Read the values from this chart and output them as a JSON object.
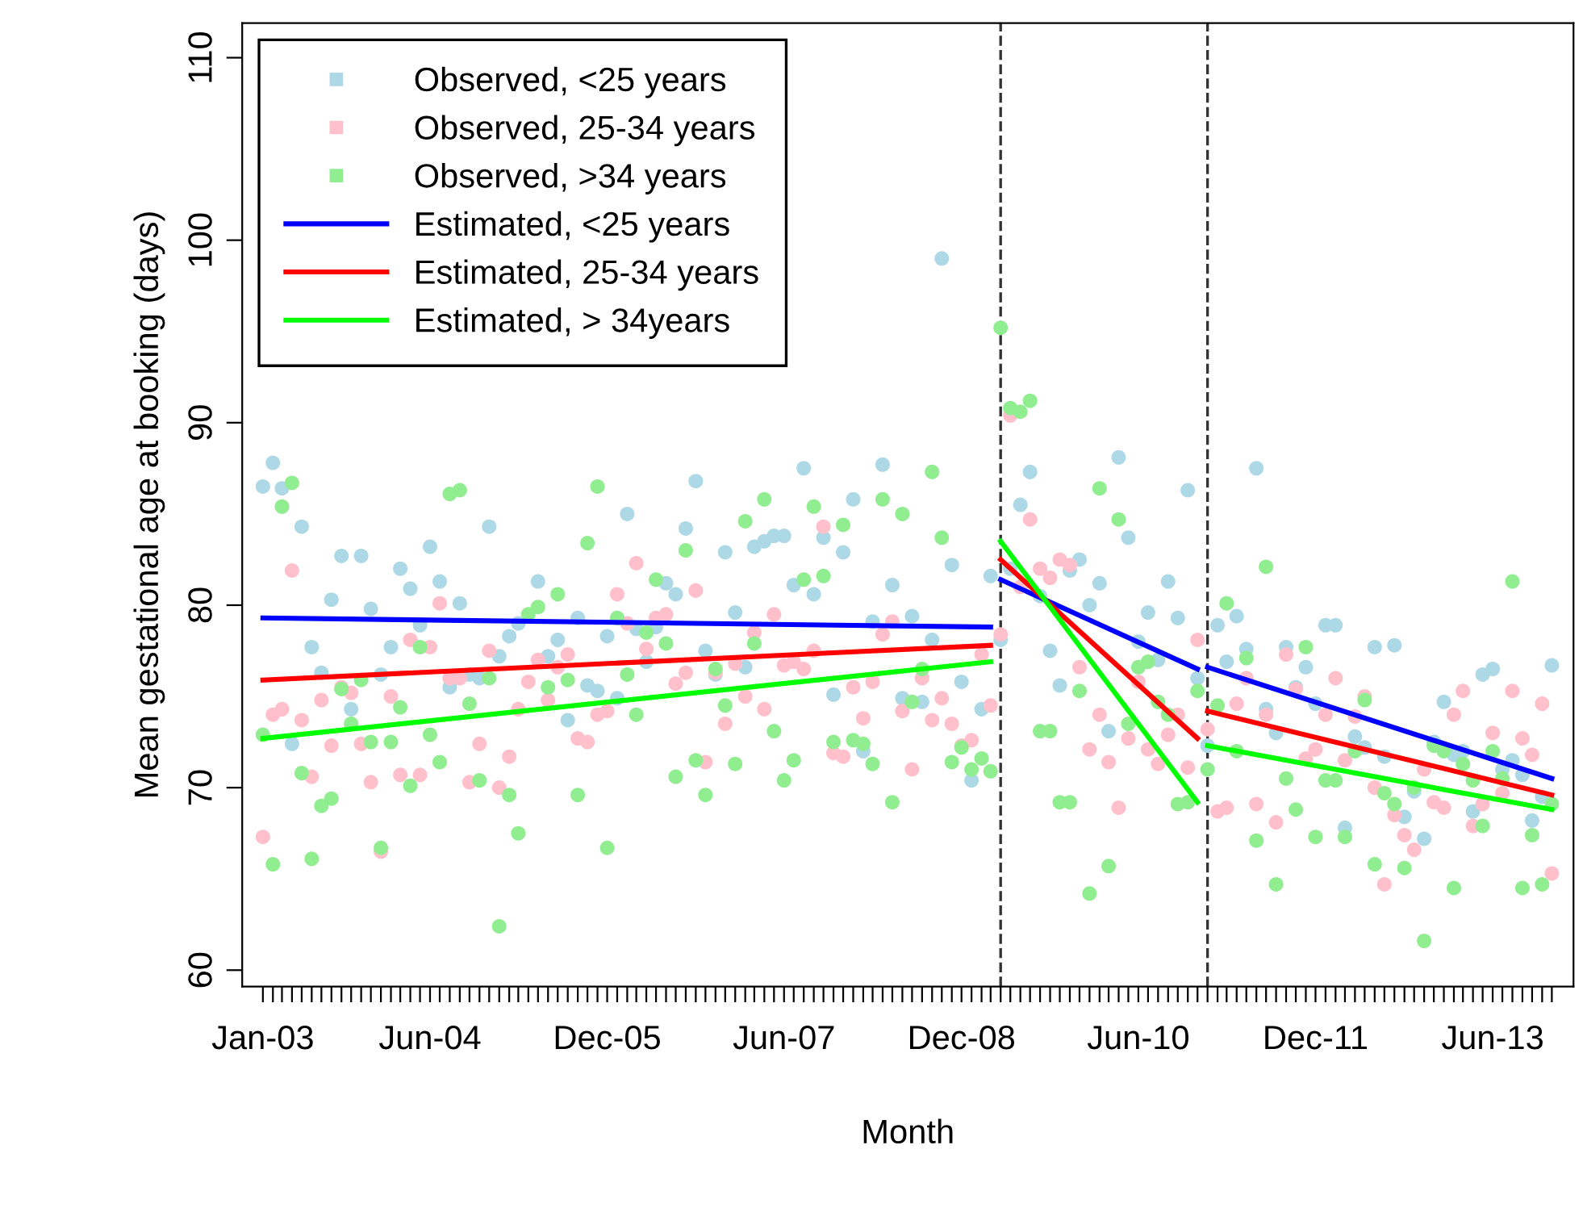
{
  "chart_data": {
    "type": "scatter",
    "xlabel": "Month",
    "ylabel": "Mean gestational age at booking (days)",
    "x": [
      "2003-01",
      "2003-02",
      "2003-03",
      "2003-04",
      "2003-05",
      "2003-06",
      "2003-07",
      "2003-08",
      "2003-09",
      "2003-10",
      "2003-11",
      "2003-12",
      "2004-01",
      "2004-02",
      "2004-03",
      "2004-04",
      "2004-05",
      "2004-06",
      "2004-07",
      "2004-08",
      "2004-09",
      "2004-10",
      "2004-11",
      "2004-12",
      "2005-01",
      "2005-02",
      "2005-03",
      "2005-04",
      "2005-05",
      "2005-06",
      "2005-07",
      "2005-08",
      "2005-09",
      "2005-10",
      "2005-11",
      "2005-12",
      "2006-01",
      "2006-02",
      "2006-03",
      "2006-04",
      "2006-05",
      "2006-06",
      "2006-07",
      "2006-08",
      "2006-09",
      "2006-10",
      "2006-11",
      "2006-12",
      "2007-01",
      "2007-02",
      "2007-03",
      "2007-04",
      "2007-05",
      "2007-06",
      "2007-07",
      "2007-08",
      "2007-09",
      "2007-10",
      "2007-11",
      "2007-12",
      "2008-01",
      "2008-02",
      "2008-03",
      "2008-04",
      "2008-05",
      "2008-06",
      "2008-07",
      "2008-08",
      "2008-09",
      "2008-10",
      "2008-11",
      "2008-12",
      "2009-01",
      "2009-02",
      "2009-03",
      "2009-04",
      "2009-05",
      "2009-06",
      "2009-07",
      "2009-08",
      "2009-09",
      "2009-10",
      "2009-11",
      "2009-12",
      "2010-01",
      "2010-02",
      "2010-03",
      "2010-04",
      "2010-05",
      "2010-06",
      "2010-07",
      "2010-08",
      "2010-09",
      "2010-10",
      "2010-11",
      "2010-12",
      "2011-01",
      "2011-02",
      "2011-03",
      "2011-04",
      "2011-05",
      "2011-06",
      "2011-07",
      "2011-08",
      "2011-09",
      "2011-10",
      "2011-11",
      "2011-12",
      "2012-01",
      "2012-02",
      "2012-03",
      "2012-04",
      "2012-05",
      "2012-06",
      "2012-07",
      "2012-08",
      "2012-09",
      "2012-10",
      "2012-11",
      "2012-12",
      "2013-01",
      "2013-02",
      "2013-03",
      "2013-04",
      "2013-05",
      "2013-06",
      "2013-07",
      "2013-08",
      "2013-09",
      "2013-10",
      "2013-11",
      "2013-12"
    ],
    "series": [
      {
        "name": "Observed, <25 years",
        "marker": "circle",
        "color": "#add8e6",
        "values": [
          86.5,
          87.8,
          86.4,
          72.4,
          84.3,
          77.7,
          76.3,
          80.3,
          82.7,
          74.3,
          82.7,
          79.8,
          76.2,
          77.7,
          82.0,
          80.9,
          78.9,
          83.2,
          81.3,
          75.5,
          80.1,
          76.2,
          76.0,
          84.3,
          77.2,
          78.3,
          79.0,
          null,
          81.3,
          77.2,
          78.1,
          73.7,
          79.3,
          75.6,
          75.3,
          78.3,
          74.9,
          85.0,
          78.7,
          76.9,
          78.8,
          81.2,
          80.6,
          84.2,
          86.8,
          77.5,
          76.2,
          82.9,
          79.6,
          76.6,
          83.2,
          83.5,
          83.8,
          83.8,
          81.1,
          87.5,
          80.6,
          83.7,
          75.1,
          82.9,
          85.8,
          72.0,
          79.1,
          87.7,
          81.1,
          74.9,
          79.4,
          74.7,
          78.1,
          99.0,
          82.2,
          75.8,
          70.4,
          74.3,
          81.6,
          78.1,
          82.0,
          85.5,
          87.3,
          80.5,
          77.5,
          75.6,
          81.9,
          82.5,
          80.0,
          81.2,
          73.1,
          88.1,
          83.7,
          78.0,
          79.6,
          77.0,
          81.3,
          79.3,
          86.3,
          76.0,
          72.3,
          78.9,
          76.9,
          79.4,
          77.6,
          87.5,
          74.3,
          73.0,
          77.7,
          75.5,
          76.6,
          74.6,
          78.9,
          78.9,
          67.8,
          72.8,
          72.2,
          77.7,
          71.7,
          77.8,
          68.4,
          69.8,
          67.2,
          72.5,
          74.7,
          71.8,
          72.0,
          68.7,
          76.2,
          76.5,
          71.0,
          71.5,
          70.7,
          68.2,
          69.5,
          76.7
        ]
      },
      {
        "name": "Observed, 25-34 years",
        "marker": "circle",
        "color": "#ffc0cb",
        "values": [
          67.3,
          74.0,
          74.3,
          81.9,
          73.7,
          70.6,
          74.8,
          72.3,
          75.5,
          75.2,
          72.4,
          70.3,
          66.5,
          75.0,
          70.7,
          78.1,
          70.7,
          77.7,
          80.1,
          76.0,
          76.0,
          70.3,
          72.4,
          77.5,
          70.0,
          71.7,
          74.3,
          75.8,
          77.0,
          74.8,
          76.6,
          77.3,
          72.7,
          72.5,
          74.0,
          74.2,
          80.6,
          79.0,
          82.3,
          77.6,
          79.3,
          79.5,
          75.7,
          76.3,
          80.8,
          71.4,
          76.3,
          73.5,
          76.8,
          75.0,
          78.5,
          74.3,
          79.5,
          76.7,
          76.9,
          76.5,
          77.5,
          84.3,
          71.9,
          71.7,
          75.5,
          73.8,
          75.8,
          78.4,
          79.1,
          74.2,
          71.0,
          76.0,
          73.7,
          74.9,
          73.5,
          72.3,
          72.6,
          77.3,
          74.5,
          78.4,
          90.4,
          81.0,
          84.7,
          82.0,
          81.5,
          82.5,
          82.2,
          76.6,
          72.1,
          74.0,
          71.4,
          68.9,
          72.7,
          75.8,
          72.1,
          71.3,
          72.9,
          74.0,
          71.1,
          78.1,
          73.2,
          68.7,
          68.9,
          74.6,
          76.0,
          69.1,
          74.0,
          68.1,
          77.3,
          75.4,
          71.6,
          72.1,
          74.0,
          76.0,
          71.5,
          73.9,
          75.0,
          70.0,
          64.7,
          68.5,
          67.4,
          66.6,
          71.0,
          69.2,
          68.9,
          74.0,
          75.3,
          67.9,
          69.1,
          73.0,
          69.7,
          75.3,
          72.7,
          71.8,
          74.6,
          65.3
        ]
      },
      {
        "name": "Observed, >34 years",
        "marker": "circle",
        "color": "#90ee90",
        "values": [
          72.9,
          65.8,
          85.4,
          86.7,
          70.8,
          66.1,
          69.0,
          69.4,
          75.4,
          73.5,
          75.9,
          72.5,
          66.7,
          72.5,
          74.4,
          70.1,
          77.7,
          72.9,
          71.4,
          86.1,
          86.3,
          74.6,
          70.4,
          76.0,
          62.4,
          69.6,
          67.5,
          79.5,
          79.9,
          75.5,
          80.6,
          75.9,
          69.6,
          83.4,
          86.5,
          66.7,
          79.3,
          76.2,
          74.0,
          78.5,
          81.4,
          77.9,
          70.6,
          83.0,
          71.5,
          69.6,
          76.5,
          74.5,
          71.3,
          84.6,
          77.9,
          85.8,
          73.1,
          70.4,
          71.5,
          81.4,
          85.4,
          81.6,
          72.5,
          84.4,
          72.6,
          72.4,
          71.3,
          85.8,
          69.2,
          85.0,
          74.7,
          76.5,
          87.3,
          83.7,
          71.4,
          72.2,
          71.0,
          71.6,
          70.9,
          95.2,
          90.8,
          90.6,
          91.2,
          73.1,
          73.1,
          69.2,
          69.2,
          75.3,
          64.2,
          86.4,
          65.7,
          84.7,
          73.5,
          76.6,
          76.9,
          74.7,
          74.0,
          69.1,
          69.2,
          75.3,
          71.0,
          74.5,
          80.1,
          72.0,
          77.1,
          67.1,
          82.1,
          64.7,
          70.5,
          68.8,
          77.7,
          67.3,
          70.4,
          70.4,
          67.3,
          72.0,
          74.8,
          65.8,
          69.7,
          69.1,
          65.6,
          70.0,
          61.6,
          72.3,
          72.0,
          64.5,
          71.3,
          70.4,
          67.9,
          72.0,
          70.5,
          81.3,
          64.5,
          67.4,
          64.7,
          69.1
        ]
      },
      {
        "name": "Estimated, <25 years",
        "type": "line",
        "marker": "none",
        "color": "#0000ff",
        "x": [
          "2003-01",
          "2009-03"
        ],
        "values": [
          79.3,
          78.8
        ]
      },
      {
        "name": "Estimated, 25-34 years",
        "type": "line",
        "marker": "none",
        "color": "#ff0000",
        "x": [
          "2003-01",
          "2009-03"
        ],
        "values": [
          75.9,
          77.8
        ]
      },
      {
        "name": "Estimated, > 34years",
        "type": "line",
        "marker": "none",
        "color": "#00ff00",
        "x": [
          "2003-01",
          "2009-03"
        ],
        "values": [
          72.7,
          76.9
        ]
      },
      {
        "type": "line",
        "marker": "none",
        "color": "#0000ff",
        "x": [
          "2009-04",
          "2010-12"
        ],
        "values": [
          81.4,
          76.5
        ]
      },
      {
        "type": "line",
        "marker": "none",
        "color": "#ff0000",
        "x": [
          "2009-04",
          "2010-12"
        ],
        "values": [
          82.5,
          72.7
        ]
      },
      {
        "type": "line",
        "marker": "none",
        "color": "#00ff00",
        "x": [
          "2009-04",
          "2010-12"
        ],
        "values": [
          83.5,
          69.2
        ]
      },
      {
        "type": "line",
        "marker": "none",
        "color": "#0000ff",
        "x": [
          "2011-01",
          "2013-12"
        ],
        "values": [
          76.6,
          70.5
        ]
      },
      {
        "type": "line",
        "marker": "none",
        "color": "#ff0000",
        "x": [
          "2011-01",
          "2013-12"
        ],
        "values": [
          74.2,
          69.6
        ]
      },
      {
        "type": "line",
        "marker": "none",
        "color": "#00ff00",
        "x": [
          "2011-01",
          "2013-12"
        ],
        "values": [
          72.3,
          68.8
        ]
      }
    ],
    "ref_lines": [
      {
        "axis": "x",
        "value": "2009-04",
        "label": null,
        "color": "#333333",
        "line_style": "dashed"
      },
      {
        "axis": "x",
        "value": "2011-01",
        "label": null,
        "color": "#333333",
        "line_style": "dashed"
      }
    ],
    "xlim": [
      "2002-10-29",
      "2014-02-06"
    ],
    "ylim": [
      59.1,
      111.9
    ],
    "yticks": [
      60,
      70,
      80,
      90,
      100,
      110
    ],
    "xticks": [
      {
        "value": "2003-01",
        "label": "Jan-03"
      },
      {
        "value": "2003-02",
        "label": null
      },
      {
        "value": "2003-03",
        "label": null
      },
      {
        "value": "2003-04",
        "label": null
      },
      {
        "value": "2003-05",
        "label": null
      },
      {
        "value": "2003-06",
        "label": null
      },
      {
        "value": "2003-07",
        "label": null
      },
      {
        "value": "2003-08",
        "label": null
      },
      {
        "value": "2003-09",
        "label": null
      },
      {
        "value": "2003-10",
        "label": null
      },
      {
        "value": "2003-11",
        "label": null
      },
      {
        "value": "2003-12",
        "label": null
      },
      {
        "value": "2004-01",
        "label": null
      },
      {
        "value": "2004-02",
        "label": null
      },
      {
        "value": "2004-03",
        "label": null
      },
      {
        "value": "2004-04",
        "label": null
      },
      {
        "value": "2004-05",
        "label": null
      },
      {
        "value": "2004-06",
        "label": "Jun-04"
      },
      {
        "value": "2004-07",
        "label": null
      },
      {
        "value": "2004-08",
        "label": null
      },
      {
        "value": "2004-09",
        "label": null
      },
      {
        "value": "2004-10",
        "label": null
      },
      {
        "value": "2004-11",
        "label": null
      },
      {
        "value": "2004-12",
        "label": null
      },
      {
        "value": "2005-01",
        "label": null
      },
      {
        "value": "2005-02",
        "label": null
      },
      {
        "value": "2005-03",
        "label": null
      },
      {
        "value": "2005-04",
        "label": null
      },
      {
        "value": "2005-05",
        "label": null
      },
      {
        "value": "2005-06",
        "label": null
      },
      {
        "value": "2005-07",
        "label": null
      },
      {
        "value": "2005-08",
        "label": null
      },
      {
        "value": "2005-09",
        "label": null
      },
      {
        "value": "2005-10",
        "label": null
      },
      {
        "value": "2005-11",
        "label": null
      },
      {
        "value": "2005-12",
        "label": "Dec-05"
      },
      {
        "value": "2006-01",
        "label": null
      },
      {
        "value": "2006-02",
        "label": null
      },
      {
        "value": "2006-03",
        "label": null
      },
      {
        "value": "2006-04",
        "label": null
      },
      {
        "value": "2006-05",
        "label": null
      },
      {
        "value": "2006-06",
        "label": null
      },
      {
        "value": "2006-07",
        "label": null
      },
      {
        "value": "2006-08",
        "label": null
      },
      {
        "value": "2006-09",
        "label": null
      },
      {
        "value": "2006-10",
        "label": null
      },
      {
        "value": "2006-11",
        "label": null
      },
      {
        "value": "2006-12",
        "label": null
      },
      {
        "value": "2007-01",
        "label": null
      },
      {
        "value": "2007-02",
        "label": null
      },
      {
        "value": "2007-03",
        "label": null
      },
      {
        "value": "2007-04",
        "label": null
      },
      {
        "value": "2007-05",
        "label": null
      },
      {
        "value": "2007-06",
        "label": "Jun-07"
      },
      {
        "value": "2007-07",
        "label": null
      },
      {
        "value": "2007-08",
        "label": null
      },
      {
        "value": "2007-09",
        "label": null
      },
      {
        "value": "2007-10",
        "label": null
      },
      {
        "value": "2007-11",
        "label": null
      },
      {
        "value": "2007-12",
        "label": null
      },
      {
        "value": "2008-01",
        "label": null
      },
      {
        "value": "2008-02",
        "label": null
      },
      {
        "value": "2008-03",
        "label": null
      },
      {
        "value": "2008-04",
        "label": null
      },
      {
        "value": "2008-05",
        "label": null
      },
      {
        "value": "2008-06",
        "label": null
      },
      {
        "value": "2008-07",
        "label": null
      },
      {
        "value": "2008-08",
        "label": null
      },
      {
        "value": "2008-09",
        "label": null
      },
      {
        "value": "2008-10",
        "label": null
      },
      {
        "value": "2008-11",
        "label": null
      },
      {
        "value": "2008-12",
        "label": "Dec-08"
      },
      {
        "value": "2009-01",
        "label": null
      },
      {
        "value": "2009-02",
        "label": null
      },
      {
        "value": "2009-03",
        "label": null
      },
      {
        "value": "2009-04",
        "label": null
      },
      {
        "value": "2009-05",
        "label": null
      },
      {
        "value": "2009-06",
        "label": null
      },
      {
        "value": "2009-07",
        "label": null
      },
      {
        "value": "2009-08",
        "label": null
      },
      {
        "value": "2009-09",
        "label": null
      },
      {
        "value": "2009-10",
        "label": null
      },
      {
        "value": "2009-11",
        "label": null
      },
      {
        "value": "2009-12",
        "label": null
      },
      {
        "value": "2010-01",
        "label": null
      },
      {
        "value": "2010-02",
        "label": null
      },
      {
        "value": "2010-03",
        "label": null
      },
      {
        "value": "2010-04",
        "label": null
      },
      {
        "value": "2010-05",
        "label": null
      },
      {
        "value": "2010-06",
        "label": "Jun-10"
      },
      {
        "value": "2010-07",
        "label": null
      },
      {
        "value": "2010-08",
        "label": null
      },
      {
        "value": "2010-09",
        "label": null
      },
      {
        "value": "2010-10",
        "label": null
      },
      {
        "value": "2010-11",
        "label": null
      },
      {
        "value": "2010-12",
        "label": null
      },
      {
        "value": "2011-01",
        "label": null
      },
      {
        "value": "2011-02",
        "label": null
      },
      {
        "value": "2011-03",
        "label": null
      },
      {
        "value": "2011-04",
        "label": null
      },
      {
        "value": "2011-05",
        "label": null
      },
      {
        "value": "2011-06",
        "label": null
      },
      {
        "value": "2011-07",
        "label": null
      },
      {
        "value": "2011-08",
        "label": null
      },
      {
        "value": "2011-09",
        "label": null
      },
      {
        "value": "2011-10",
        "label": null
      },
      {
        "value": "2011-11",
        "label": null
      },
      {
        "value": "2011-12",
        "label": "Dec-11"
      },
      {
        "value": "2012-01",
        "label": null
      },
      {
        "value": "2012-02",
        "label": null
      },
      {
        "value": "2012-03",
        "label": null
      },
      {
        "value": "2012-04",
        "label": null
      },
      {
        "value": "2012-05",
        "label": null
      },
      {
        "value": "2012-06",
        "label": null
      },
      {
        "value": "2012-07",
        "label": null
      },
      {
        "value": "2012-08",
        "label": null
      },
      {
        "value": "2012-09",
        "label": null
      },
      {
        "value": "2012-10",
        "label": null
      },
      {
        "value": "2012-11",
        "label": null
      },
      {
        "value": "2012-12",
        "label": null
      },
      {
        "value": "2013-01",
        "label": null
      },
      {
        "value": "2013-02",
        "label": null
      },
      {
        "value": "2013-03",
        "label": null
      },
      {
        "value": "2013-04",
        "label": null
      },
      {
        "value": "2013-05",
        "label": null
      },
      {
        "value": "2013-06",
        "label": "Jun-13"
      },
      {
        "value": "2013-07",
        "label": null
      },
      {
        "value": "2013-08",
        "label": null
      },
      {
        "value": "2013-09",
        "label": null
      },
      {
        "value": "2013-10",
        "label": null
      },
      {
        "value": "2013-11",
        "label": null
      },
      {
        "value": "2013-12",
        "label": null
      }
    ],
    "grid": false,
    "legend": "top left",
    "line_style": "solid"
  }
}
